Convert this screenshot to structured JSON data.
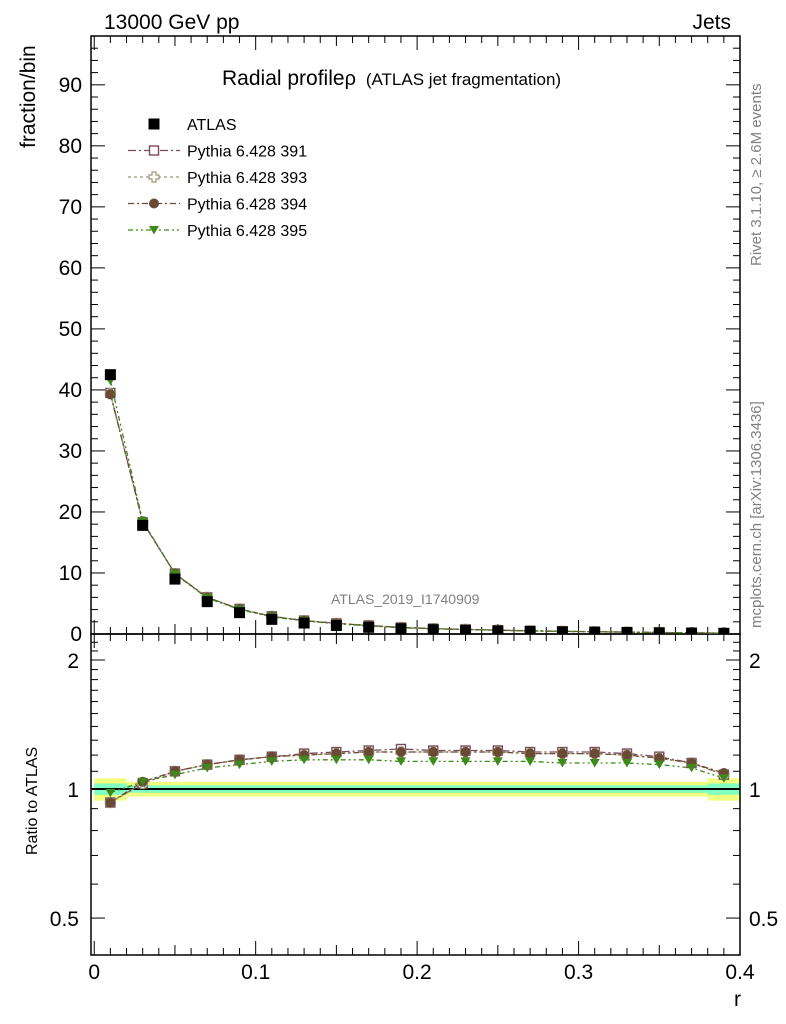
{
  "header": {
    "left": "13000 GeV pp",
    "right": "Jets"
  },
  "side_labels": {
    "rivet": "Rivet 3.1.10, ≥ 2.6M events",
    "mcplots": "mcplots.cern.ch [arXiv:1306.3436]"
  },
  "watermark": "ATLAS_2019_I1740909",
  "colors": {
    "atlas": "#000000",
    "p391": "#7a4a5e",
    "p393": "#9a9870",
    "p394": "#6b4a35",
    "p395": "#3c8a1a",
    "band_inner": "#80ffc0",
    "band_outer": "#f0ff80"
  },
  "chart_data": [
    {
      "type": "scatter",
      "title": "Radial profile",
      "title_symbol": "ρ",
      "title_suffix": "(ATLAS jet fragmentation)",
      "ylabel": "fraction/bin",
      "xlim": [
        -0.002,
        0.4
      ],
      "ylim": [
        0,
        98
      ],
      "y_ticks": [
        0,
        10,
        20,
        30,
        40,
        50,
        60,
        70,
        80,
        90
      ],
      "legend_position": "top-left",
      "x": [
        0.01,
        0.03,
        0.05,
        0.07,
        0.09,
        0.11,
        0.13,
        0.15,
        0.17,
        0.19,
        0.21,
        0.23,
        0.25,
        0.27,
        0.29,
        0.31,
        0.33,
        0.35,
        0.37,
        0.39
      ],
      "series": [
        {
          "name": "ATLAS",
          "marker": "square-filled",
          "values": [
            42.5,
            17.8,
            9.0,
            5.3,
            3.5,
            2.4,
            1.8,
            1.4,
            1.1,
            0.85,
            0.7,
            0.6,
            0.5,
            0.42,
            0.36,
            0.3,
            0.25,
            0.2,
            0.16,
            0.12
          ]
        },
        {
          "name": "Pythia 6.428 391",
          "marker": "square-open",
          "values": [
            39.5,
            18.3,
            9.9,
            6.0,
            4.1,
            2.9,
            2.2,
            1.75,
            1.4,
            1.07,
            0.88,
            0.76,
            0.63,
            0.53,
            0.45,
            0.38,
            0.31,
            0.25,
            0.19,
            0.13
          ]
        },
        {
          "name": "Pythia 6.428 393",
          "marker": "cross-open",
          "values": [
            39.4,
            18.4,
            9.9,
            6.0,
            4.1,
            2.9,
            2.2,
            1.75,
            1.4,
            1.06,
            0.88,
            0.76,
            0.63,
            0.53,
            0.45,
            0.38,
            0.31,
            0.25,
            0.19,
            0.13
          ]
        },
        {
          "name": "Pythia 6.428 394",
          "marker": "circle-filled",
          "values": [
            39.3,
            18.4,
            9.9,
            6.0,
            4.1,
            2.9,
            2.2,
            1.74,
            1.4,
            1.06,
            0.88,
            0.76,
            0.63,
            0.53,
            0.45,
            0.38,
            0.31,
            0.25,
            0.19,
            0.13
          ]
        },
        {
          "name": "Pythia 6.428 395",
          "marker": "triangle-down-filled",
          "values": [
            41.5,
            18.5,
            9.8,
            5.9,
            4.0,
            2.8,
            2.15,
            1.67,
            1.33,
            1.01,
            0.84,
            0.72,
            0.6,
            0.51,
            0.43,
            0.36,
            0.3,
            0.24,
            0.18,
            0.13
          ]
        }
      ]
    },
    {
      "type": "scatter",
      "ylabel": "Ratio to ATLAS",
      "xlabel": "r",
      "xlim": [
        -0.002,
        0.4
      ],
      "ylim": [
        0.41,
        2.3
      ],
      "y_scale": "log",
      "y_ticks": [
        0.5,
        1,
        2
      ],
      "y_tick_labels": [
        "0.5",
        "1",
        "2"
      ],
      "x_ticks": [
        0,
        0.1,
        0.2,
        0.3,
        0.4
      ],
      "x_tick_labels": [
        "0",
        "0.1",
        "0.2",
        "0.3",
        "0.4"
      ],
      "bands": {
        "inner": [
          0.03,
          0.02,
          0.02,
          0.02,
          0.02,
          0.02,
          0.02,
          0.02,
          0.02,
          0.02,
          0.02,
          0.02,
          0.02,
          0.02,
          0.02,
          0.02,
          0.02,
          0.02,
          0.02,
          0.03
        ],
        "outer": [
          0.06,
          0.04,
          0.04,
          0.04,
          0.04,
          0.04,
          0.04,
          0.04,
          0.04,
          0.04,
          0.04,
          0.04,
          0.04,
          0.04,
          0.04,
          0.04,
          0.04,
          0.04,
          0.04,
          0.06
        ]
      },
      "series": [
        {
          "name": "Pythia 6.428 391",
          "values": [
            0.93,
            1.03,
            1.1,
            1.14,
            1.17,
            1.19,
            1.21,
            1.22,
            1.23,
            1.24,
            1.23,
            1.23,
            1.23,
            1.22,
            1.22,
            1.22,
            1.21,
            1.19,
            1.15,
            1.08
          ]
        },
        {
          "name": "Pythia 6.428 393",
          "values": [
            0.93,
            1.03,
            1.1,
            1.14,
            1.17,
            1.19,
            1.2,
            1.21,
            1.22,
            1.22,
            1.22,
            1.22,
            1.22,
            1.21,
            1.21,
            1.21,
            1.2,
            1.18,
            1.15,
            1.08
          ]
        },
        {
          "name": "Pythia 6.428 394",
          "values": [
            0.93,
            1.04,
            1.1,
            1.14,
            1.17,
            1.19,
            1.2,
            1.21,
            1.22,
            1.22,
            1.22,
            1.22,
            1.22,
            1.21,
            1.21,
            1.21,
            1.2,
            1.18,
            1.15,
            1.09
          ]
        },
        {
          "name": "Pythia 6.428 395",
          "values": [
            0.98,
            1.04,
            1.08,
            1.12,
            1.14,
            1.16,
            1.17,
            1.17,
            1.17,
            1.16,
            1.16,
            1.16,
            1.16,
            1.16,
            1.15,
            1.15,
            1.15,
            1.14,
            1.12,
            1.06
          ]
        }
      ]
    }
  ]
}
